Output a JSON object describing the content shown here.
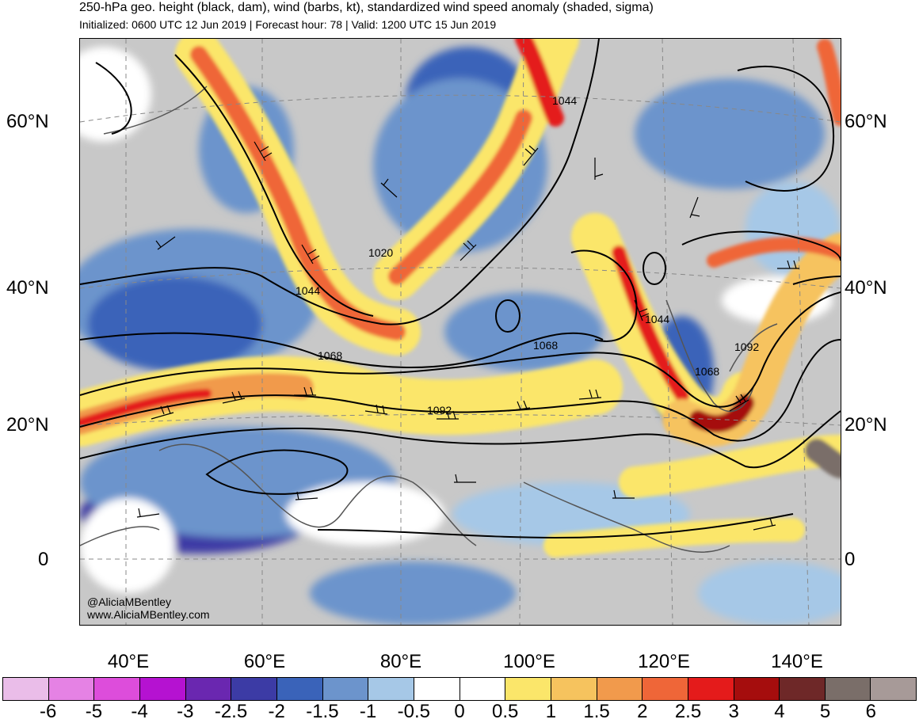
{
  "header": {
    "title": "250-hPa geo. height (black, dam), wind (barbs, kt), standardized wind speed anomaly (shaded, sigma)",
    "subtitle": "Initialized: 0600 UTC 12 Jun 2019 | Forecast hour: 78 | Valid: 1200 UTC 15 Jun 2019"
  },
  "map": {
    "lat_labels": [
      "60°N",
      "40°N",
      "20°N",
      "0"
    ],
    "lon_labels": [
      "40°E",
      "60°E",
      "80°E",
      "100°E",
      "120°E",
      "140°E"
    ],
    "contour_labels": [
      "1044",
      "1020",
      "1044",
      "1068",
      "1068",
      "1092",
      "1044",
      "1092",
      "1068"
    ],
    "credit_handle": "@AliciaMBentley",
    "credit_url": "www.AliciaMBentley.com"
  },
  "colorbar": {
    "colors": [
      "#eabde9",
      "#e582e4",
      "#dd4ddb",
      "#b512d1",
      "#6a27b0",
      "#3c3ba5",
      "#3a63b9",
      "#6c94cc",
      "#a6c8e7",
      "#ffffff",
      "#ffffff",
      "#fbe66a",
      "#f6c35e",
      "#f19a4c",
      "#ef6638",
      "#e41b1b",
      "#a50d0d",
      "#6e2828",
      "#7a6e69",
      "#a79a98"
    ],
    "labels": [
      "-6",
      "-5",
      "-4",
      "-3",
      "-2.5",
      "-2",
      "-1.5",
      "-1",
      "-0.5",
      "0",
      "0.5",
      "1",
      "1.5",
      "2",
      "2.5",
      "3",
      "4",
      "5",
      "6"
    ]
  }
}
